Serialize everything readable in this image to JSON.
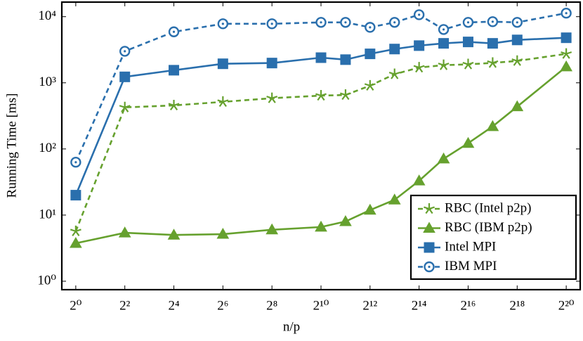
{
  "chart_data": {
    "type": "line",
    "xlabel": "n/p",
    "ylabel": "Running Time [ms]",
    "xscale": "log",
    "yscale": "log",
    "x": [
      1,
      4,
      16,
      64,
      256,
      1024,
      2048,
      4096,
      8192,
      16384,
      32768,
      65536,
      131072,
      262144,
      1048576
    ],
    "xlim": [
      0.674,
      1556000
    ],
    "ylim": [
      0.745,
      16600
    ],
    "xticks": [
      {
        "value": 1,
        "label": "2⁰"
      },
      {
        "value": 4,
        "label": "2²"
      },
      {
        "value": 16,
        "label": "2⁴"
      },
      {
        "value": 64,
        "label": "2⁶"
      },
      {
        "value": 256,
        "label": "2⁸"
      },
      {
        "value": 1024,
        "label": "2¹⁰"
      },
      {
        "value": 4096,
        "label": "2¹²"
      },
      {
        "value": 16384,
        "label": "2¹⁴"
      },
      {
        "value": 65536,
        "label": "2¹⁶"
      },
      {
        "value": 262144,
        "label": "2¹⁸"
      },
      {
        "value": 1048576,
        "label": "2²⁰"
      }
    ],
    "yticks": [
      {
        "value": 1,
        "label": "10⁰"
      },
      {
        "value": 10,
        "label": "10¹"
      },
      {
        "value": 100,
        "label": "10²"
      },
      {
        "value": 1000,
        "label": "10³"
      },
      {
        "value": 10000,
        "label": "10⁴"
      }
    ],
    "legend_position": "lower right",
    "series": [
      {
        "name": "RBC (Intel p2p)",
        "color": "#66a12e",
        "marker": "star",
        "dashed": true,
        "values": [
          5.7,
          425,
          455,
          515,
          585,
          640,
          655,
          905,
          1350,
          1700,
          1850,
          1900,
          2000,
          2140,
          2740
        ]
      },
      {
        "name": "RBC (IBM p2p)",
        "color": "#66a12e",
        "marker": "triangle",
        "dashed": false,
        "values": [
          3.75,
          5.4,
          5.0,
          5.15,
          6.0,
          6.6,
          8.0,
          11.9,
          17,
          33,
          71,
          122,
          219,
          436,
          1750
        ]
      },
      {
        "name": "Intel MPI",
        "color": "#2a6fad",
        "marker": "square",
        "dashed": false,
        "values": [
          20,
          1230,
          1550,
          1940,
          1990,
          2400,
          2240,
          2740,
          3240,
          3650,
          3950,
          4150,
          3950,
          4450,
          4800
        ]
      },
      {
        "name": "IBM MPI",
        "color": "#2a6fad",
        "marker": "circle",
        "dashed": true,
        "values": [
          63,
          3000,
          5900,
          7800,
          7800,
          8200,
          8200,
          6900,
          8200,
          10700,
          6400,
          8200,
          8400,
          8200,
          11300
        ]
      }
    ]
  }
}
